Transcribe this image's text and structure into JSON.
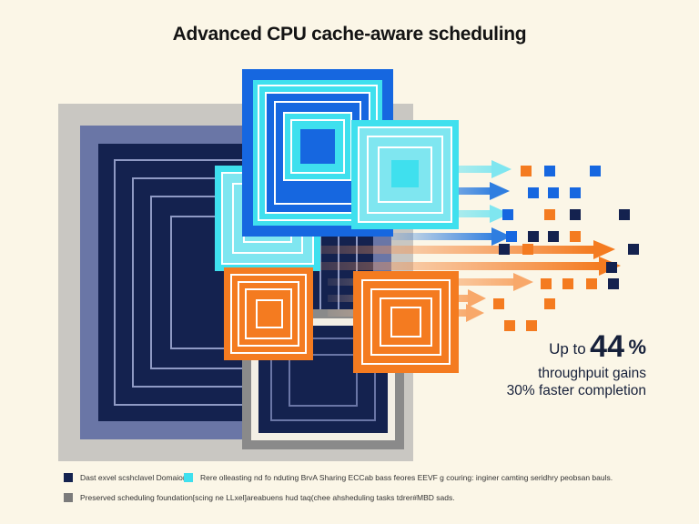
{
  "title": "Advanced CPU cache-aware scheduling",
  "stats": {
    "prefix": "Up to",
    "value": "44",
    "unit": "%",
    "line2": "throughpuit gains",
    "line3": "30% faster completion"
  },
  "legend": [
    {
      "text": "Dast exvel scshclavel Domaion",
      "color": "#14224f"
    },
    {
      "text": "Rere olleasting nd fo nduting BrvA Sharing ECCab bass feores EEVF g couring: inginer camting seridhry peobsan bauls.",
      "color": "#3fe0ee"
    },
    {
      "text": "Preserved scheduling foundation[scing ne LLxel]areabuens hud taq(chee ahsheduling tasks tdrer#MBD sads.",
      "color": "#7b7b7b"
    }
  ],
  "colors": {
    "navy": "#14224f",
    "slate": "#6a76a6",
    "gray": "#8a8a8a",
    "blue": "#1667e0",
    "cyan": "#3fe0ee",
    "orange": "#f47b20",
    "background": "#fbf6e7"
  }
}
